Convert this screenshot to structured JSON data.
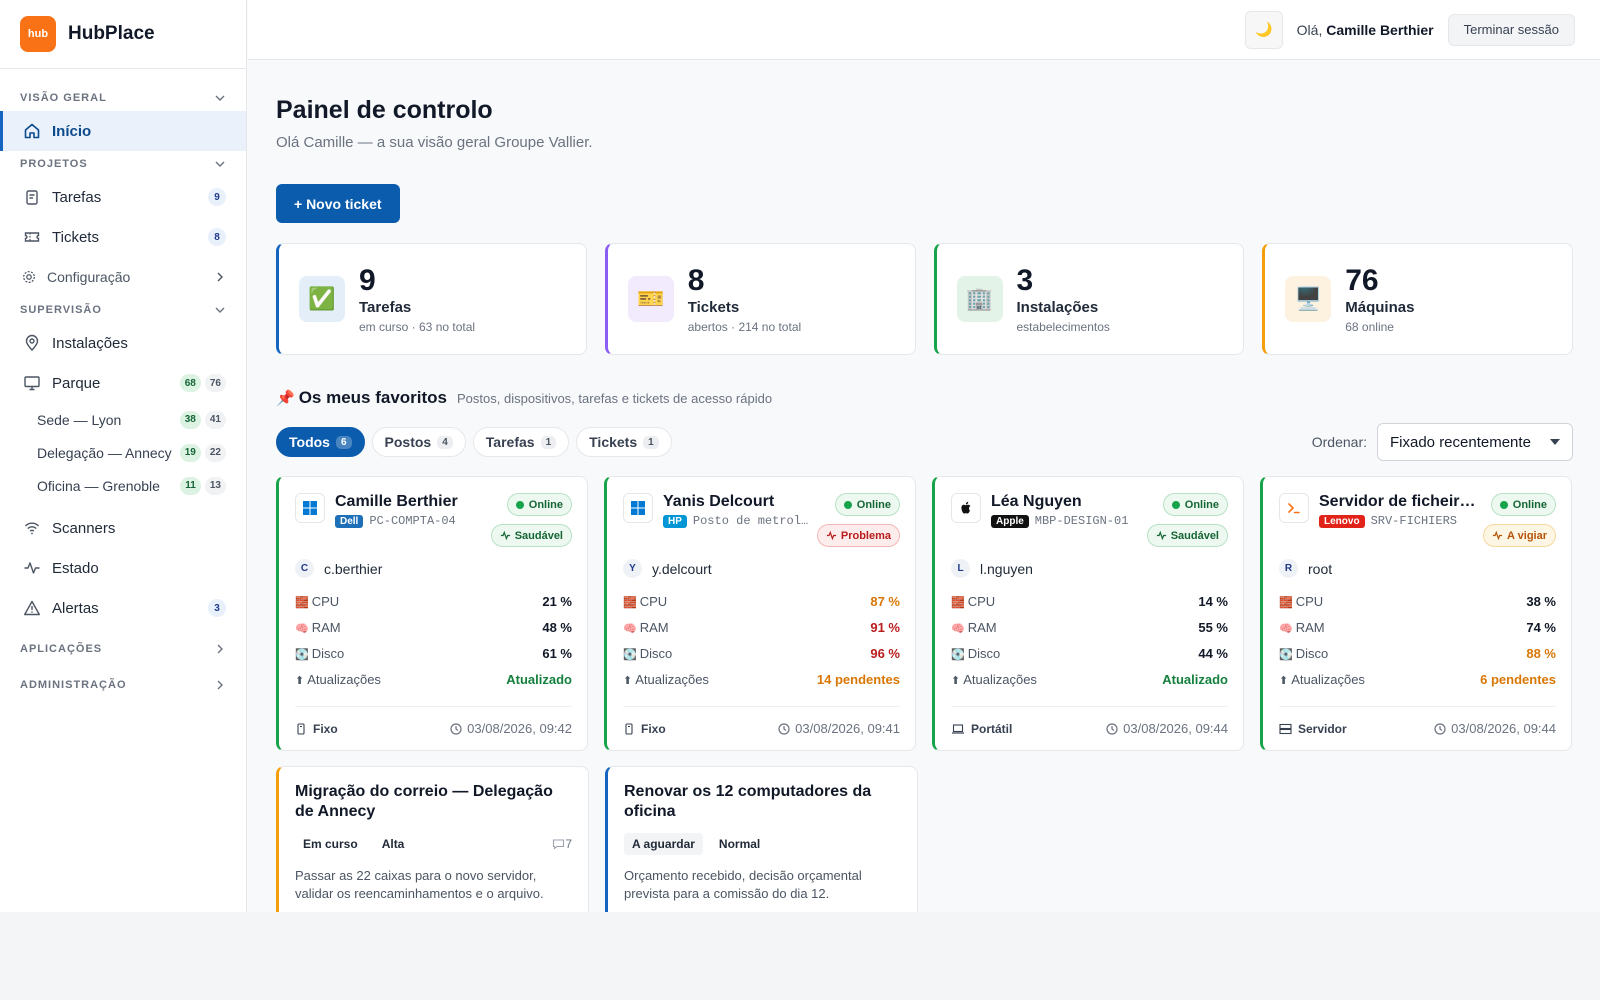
{
  "brand": {
    "logo_text": "hub",
    "name": "HubPlace",
    "accent": "#f97316"
  },
  "sidebar": {
    "sections": {
      "overview": "VISÃO GERAL",
      "projects": "PROJETOS",
      "supervision": "SUPERVISÃO",
      "applications": "APLICAÇÕES",
      "administration": "ADMINISTRAÇÃO"
    },
    "home": "Início",
    "tasks": {
      "label": "Tarefas",
      "count": "9"
    },
    "tickets": {
      "label": "Tickets",
      "count": "8"
    },
    "config": "Configuração",
    "installations": "Instalações",
    "park": {
      "label": "Parque",
      "online": "68",
      "total": "76"
    },
    "sites": [
      {
        "label": "Sede — Lyon",
        "online": "38",
        "total": "41"
      },
      {
        "label": "Delegação — Annecy",
        "online": "19",
        "total": "22"
      },
      {
        "label": "Oficina — Grenoble",
        "online": "11",
        "total": "13"
      }
    ],
    "scanners": "Scanners",
    "status": "Estado",
    "alerts": {
      "label": "Alertas",
      "count": "3"
    }
  },
  "topbar": {
    "theme_icon": "🌙",
    "greeting_prefix": "Olá,",
    "user_name": "Camille Berthier",
    "logout_label": "Terminar sessão"
  },
  "page": {
    "title": "Painel de controlo",
    "subtitle": "Olá Camille — a sua visão geral Groupe Vallier.",
    "new_ticket_label": "+ Novo ticket"
  },
  "stats": [
    {
      "icon": "✅",
      "value": "9",
      "label": "Tarefas",
      "detail": "em curso · 63 no total",
      "color": "#1565c0",
      "icon_bg": "#e3eef9"
    },
    {
      "icon": "🎫",
      "value": "8",
      "label": "Tickets",
      "detail": "abertos · 214 no total",
      "color": "#8b5cf6",
      "icon_bg": "#f1ebfd"
    },
    {
      "icon": "🏢",
      "value": "3",
      "label": "Instalações",
      "detail": "estabelecimentos",
      "color": "#16a34a",
      "icon_bg": "#e3f3e8"
    },
    {
      "icon": "🖥️",
      "value": "76",
      "label": "Máquinas",
      "detail": "68 online",
      "color": "#f59e0b",
      "icon_bg": "#fdf1e0"
    }
  ],
  "favorites": {
    "pin_icon": "📌",
    "title": "Os meus favoritos",
    "subtitle": "Postos, dispositivos, tarefas e tickets de acesso rápido",
    "filters": [
      {
        "label": "Todos",
        "count": "6"
      },
      {
        "label": "Postos",
        "count": "4"
      },
      {
        "label": "Tarefas",
        "count": "1"
      },
      {
        "label": "Tickets",
        "count": "1"
      }
    ],
    "sort_label": "Ordenar:",
    "sort_value": "Fixado recentemente"
  },
  "metric_labels": {
    "cpu": "CPU",
    "ram": "RAM",
    "disk": "Disco",
    "updates": "Atualizações"
  },
  "metric_icons": {
    "cpu": "🧱",
    "ram": "🧠",
    "disk": "💽",
    "updates": "⬆"
  },
  "devices": [
    {
      "name": "Camille Berthier",
      "os_icon": "windows-icon",
      "brand": "Dell",
      "brand_color": "#1d6fb8",
      "host": "PC-COMPTA-04",
      "status": "Online",
      "health": "Saudável",
      "user_initial": "C",
      "user": "c.berthier",
      "cpu": "21 %",
      "ram": "48 %",
      "disk": "61 %",
      "updates": "Atualizado",
      "type": "Fixo",
      "time": "03/08/2026, 09:42"
    },
    {
      "name": "Yanis Delcourt",
      "os_icon": "windows-icon",
      "brand": "HP",
      "brand_color": "#0096d6",
      "host": "Posto de metrologia",
      "status": "Online",
      "health": "Problema",
      "user_initial": "Y",
      "user": "y.delcourt",
      "cpu": "87 %",
      "ram": "91 %",
      "disk": "96 %",
      "updates": "14 pendentes",
      "type": "Fixo",
      "time": "03/08/2026, 09:41"
    },
    {
      "name": "Léa Nguyen",
      "os_icon": "apple-icon",
      "brand": "Apple",
      "brand_color": "#111111",
      "host": "MBP-DESIGN-01",
      "status": "Online",
      "health": "Saudável",
      "user_initial": "L",
      "user": "l.nguyen",
      "cpu": "14 %",
      "ram": "55 %",
      "disk": "44 %",
      "updates": "Atualizado",
      "type": "Portátil",
      "time": "03/08/2026, 09:44"
    },
    {
      "name": "Servidor de ficheiros",
      "os_icon": "terminal-icon",
      "brand": "Lenovo",
      "brand_color": "#e2231a",
      "host": "SRV-FICHIERS",
      "status": "Online",
      "health": "A vigiar",
      "user_initial": "R",
      "user": "root",
      "cpu": "38 %",
      "ram": "74 %",
      "disk": "88 %",
      "updates": "6 pendentes",
      "type": "Servidor",
      "time": "03/08/2026, 09:44"
    }
  ],
  "tasks": [
    {
      "title": "Migração do correio — Delegação de Annecy",
      "status": "Em curso",
      "priority": "Alta",
      "comments": "7",
      "description": "Passar as 22 caixas para o novo servidor, validar os reencaminhamentos e o arquivo.",
      "color": "#f59e0b"
    },
    {
      "title": "Renovar os 12 computadores da oficina",
      "status": "A aguardar",
      "priority": "Normal",
      "comments": "",
      "description": "Orçamento recebido, decisão orçamental prevista para a comissão do dia 12.",
      "color": "#1565c0"
    }
  ]
}
